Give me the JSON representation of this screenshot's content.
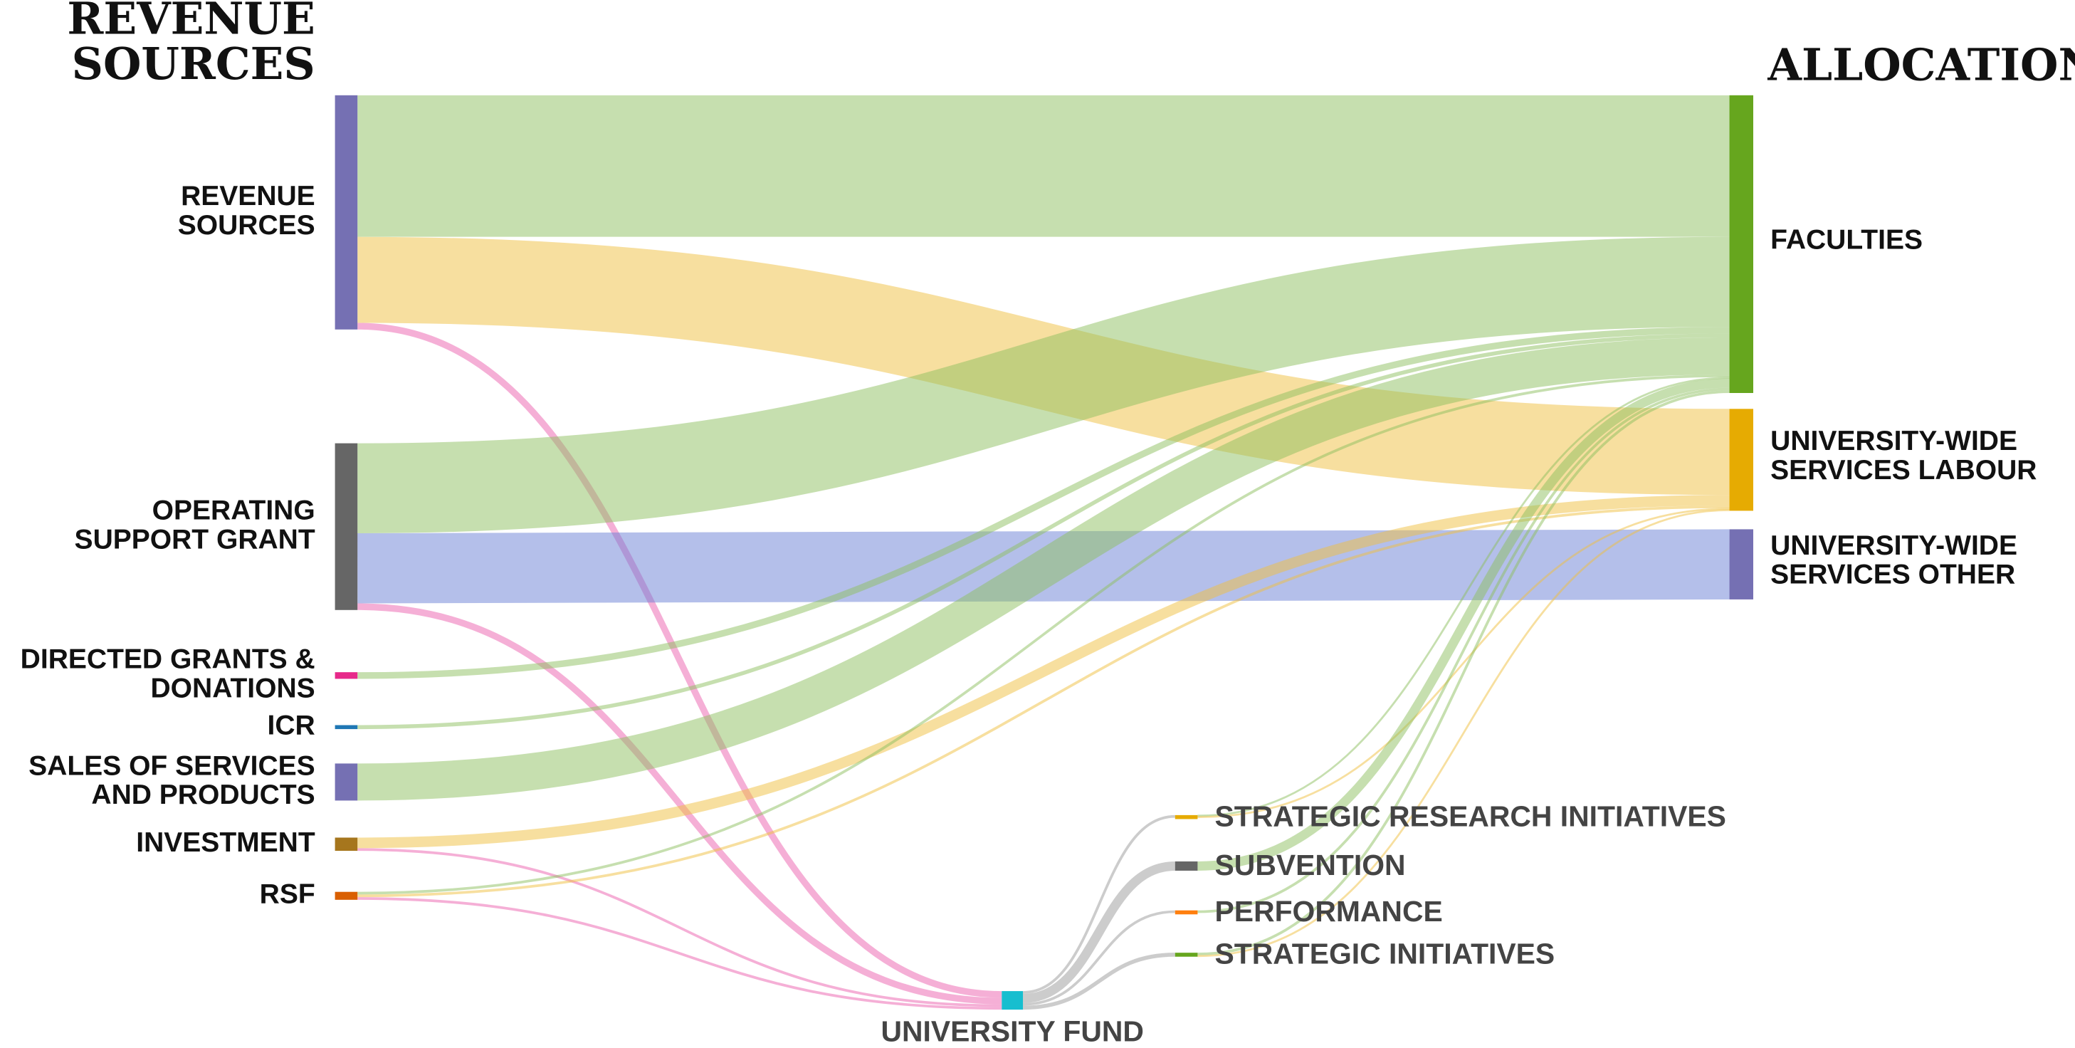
{
  "chart_data": {
    "type": "sankey",
    "headings": [
      [
        "REVENUE",
        "SOURCES"
      ],
      [
        "ALLOCATION"
      ]
    ],
    "nodes": [
      {
        "name": [
          "REVENUE",
          "SOURCES"
        ],
        "color": "#7570b3"
      },
      {
        "name": [
          "OPERATING",
          "SUPPORT GRANT"
        ],
        "color": "#666666"
      },
      {
        "name": [
          "DIRECTED GRANTS &",
          "DONATIONS"
        ],
        "color": "#e7298a"
      },
      {
        "name": [
          "ICR"
        ],
        "color": "#1f77b4"
      },
      {
        "name": [
          "SALES OF SERVICES",
          "AND PRODUCTS"
        ],
        "color": "#7570b3"
      },
      {
        "name": [
          "INVESTMENT"
        ],
        "color": "#a6761d"
      },
      {
        "name": [
          "RSF"
        ],
        "color": "#d95f02"
      },
      {
        "name": [
          "UNIVERSITY FUND"
        ],
        "color": "#17becf"
      },
      {
        "name": [
          "STRATEGIC RESEARCH INITIATIVES"
        ],
        "color": "#e6ab02"
      },
      {
        "name": [
          "SUBVENTION"
        ],
        "color": "#666666"
      },
      {
        "name": [
          "PERFORMANCE"
        ],
        "color": "#ff7f0e"
      },
      {
        "name": [
          "STRATEGIC INITIATIVES"
        ],
        "color": "#66a61e"
      },
      {
        "name": [
          "FACULTIES"
        ],
        "color": "#66a61e"
      },
      {
        "name": [
          "UNIVERSITY-WIDE",
          "SERVICES LABOUR"
        ],
        "color": "#e6ab02"
      },
      {
        "name": [
          "UNIVERSITY-WIDE",
          "SERVICES OTHER"
        ],
        "color": "#7570b3"
      }
    ],
    "links": [
      {
        "source": 0,
        "target": 12,
        "value": 107,
        "color": "#8dbf5f"
      },
      {
        "source": 0,
        "target": 13,
        "value": 65,
        "color": "#f0c040"
      },
      {
        "source": 0,
        "target": 7,
        "value": 5,
        "color": "#ec5fae"
      },
      {
        "source": 1,
        "target": 12,
        "value": 68,
        "color": "#8dbf5f"
      },
      {
        "source": 1,
        "target": 14,
        "value": 53,
        "color": "#6a80d6"
      },
      {
        "source": 1,
        "target": 7,
        "value": 5,
        "color": "#ec5fae"
      },
      {
        "source": 2,
        "target": 12,
        "value": 5,
        "color": "#8dbf5f"
      },
      {
        "source": 3,
        "target": 12,
        "value": 3,
        "color": "#8dbf5f"
      },
      {
        "source": 4,
        "target": 12,
        "value": 28,
        "color": "#8dbf5f"
      },
      {
        "source": 5,
        "target": 13,
        "value": 8,
        "color": "#f0c040"
      },
      {
        "source": 5,
        "target": 7,
        "value": 2,
        "color": "#ec5fae"
      },
      {
        "source": 6,
        "target": 12,
        "value": 2,
        "color": "#8dbf5f"
      },
      {
        "source": 6,
        "target": 13,
        "value": 2,
        "color": "#f0c040"
      },
      {
        "source": 6,
        "target": 7,
        "value": 2,
        "color": "#ec5fae"
      },
      {
        "source": 7,
        "target": 8,
        "value": 2,
        "color": "#9a9a9a"
      },
      {
        "source": 7,
        "target": 9,
        "value": 7,
        "color": "#9a9a9a"
      },
      {
        "source": 7,
        "target": 10,
        "value": 2,
        "color": "#9a9a9a"
      },
      {
        "source": 7,
        "target": 11,
        "value": 3,
        "color": "#9a9a9a"
      },
      {
        "source": 8,
        "target": 12,
        "value": 1,
        "color": "#8dbf5f"
      },
      {
        "source": 8,
        "target": 13,
        "value": 1,
        "color": "#f0c040"
      },
      {
        "source": 9,
        "target": 12,
        "value": 7,
        "color": "#8dbf5f"
      },
      {
        "source": 10,
        "target": 12,
        "value": 2,
        "color": "#8dbf5f"
      },
      {
        "source": 11,
        "target": 12,
        "value": 2,
        "color": "#8dbf5f"
      },
      {
        "source": 11,
        "target": 13,
        "value": 1,
        "color": "#f0c040"
      }
    ]
  }
}
